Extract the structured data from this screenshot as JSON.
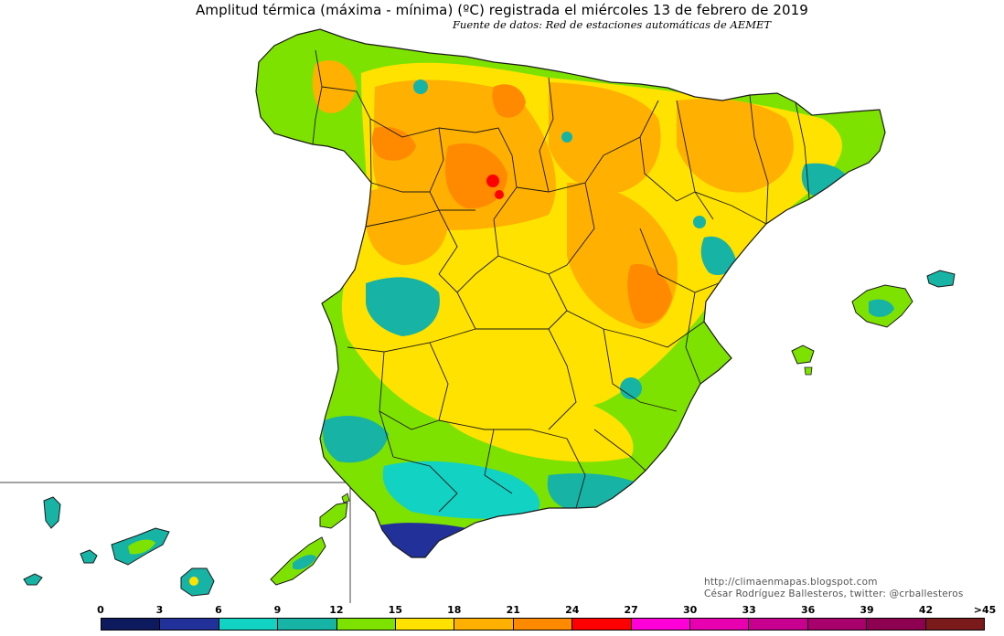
{
  "title": "Amplitud térmica (máxima - mínima) (ºC) registrada el miércoles 13 de febrero de 2019",
  "subtitle": "Fuente de datos: Red de estaciones automáticas de AEMET",
  "credits": {
    "line1": "http://climaenmapas.blogspot.com",
    "line2": "César Rodríguez Ballesteros, twitter: @crballesteros"
  },
  "legend": {
    "ticks": [
      "0",
      "3",
      "6",
      "9",
      "12",
      "15",
      "18",
      "21",
      "24",
      "27",
      "30",
      "33",
      "36",
      "39",
      "42",
      ">45"
    ],
    "colors": [
      "#0e1a5e",
      "#22309a",
      "#12d2c4",
      "#17b3a5",
      "#7ee200",
      "#ffe200",
      "#ffb000",
      "#ff8a00",
      "#ff0000",
      "#ff00d8",
      "#e800b0",
      "#c80090",
      "#a8006c",
      "#8e0050",
      "#7a1a1a"
    ]
  },
  "palette": {
    "peninsula_base": "#7ee200",
    "yellow": "#ffe200",
    "light_orange": "#ffb000",
    "orange": "#ff8a00",
    "red": "#ff0000",
    "teal": "#17b3a5",
    "cyan": "#12d2c4",
    "blue": "#22309a",
    "border": "#1a1a1a"
  }
}
